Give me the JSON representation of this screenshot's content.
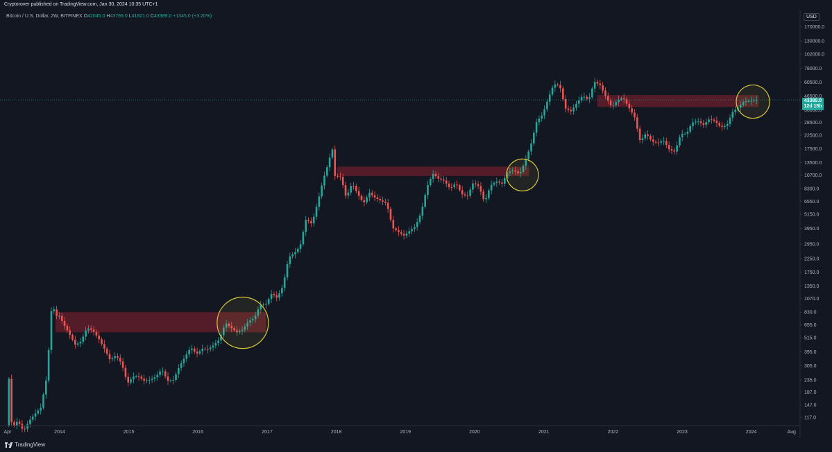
{
  "header": {
    "published": "Cryptorover published on TradingView.com, Jan 30, 2024 10:35 UTC+1"
  },
  "legend": {
    "symbol": "Bitcoin / U.S. Dollar, 2W, BITFINEX",
    "o_label": "O",
    "o_value": "42045.0",
    "h_label": "H",
    "h_value": "43769.0",
    "l_label": "L",
    "l_value": "41821.0",
    "c_label": "C",
    "c_value": "43389.0",
    "change": "+1345.0 (+3.20%)"
  },
  "price_scale": {
    "unit": "USD",
    "current_price": "43389.0",
    "countdown": "12d 15h"
  },
  "branding": {
    "logo_text": "TradingView"
  },
  "colors": {
    "background": "#131722",
    "up": "#26a69a",
    "down": "#ef5350",
    "zone": "#6b1f2c",
    "circle": "#d8c93a",
    "text": "#b2b5be"
  },
  "chart_data": {
    "type": "candlestick",
    "title": "Bitcoin / U.S. Dollar, 2W, BITFINEX",
    "y_scale": "log",
    "ylim": [
      100,
      230000
    ],
    "xlim": [
      "2013-02-20",
      "2024-09-15"
    ],
    "ytick_labels": [
      "170000.0",
      "130000.0",
      "102000.0",
      "78000.0",
      "60500.0",
      "46500.0",
      "36000.0",
      "28500.0",
      "22500.0",
      "17500.0",
      "13500.0",
      "10700.0",
      "8300.0",
      "6550.0",
      "5150.0",
      "3950.0",
      "2950.0",
      "2250.0",
      "1750.0",
      "1350.0",
      "1070.0",
      "830.0",
      "655.0",
      "515.0",
      "395.0",
      "305.0",
      "235.0",
      "187.0",
      "147.0",
      "117.0"
    ],
    "xtick_labels": [
      {
        "label": "Apr",
        "date": "2013-04-01"
      },
      {
        "label": "2014",
        "date": "2014-01-01"
      },
      {
        "label": "2015",
        "date": "2015-01-01"
      },
      {
        "label": "2016",
        "date": "2016-01-01"
      },
      {
        "label": "2017",
        "date": "2017-01-01"
      },
      {
        "label": "2018",
        "date": "2018-01-01"
      },
      {
        "label": "2019",
        "date": "2019-01-01"
      },
      {
        "label": "2020",
        "date": "2020-01-01"
      },
      {
        "label": "2021",
        "date": "2021-01-01"
      },
      {
        "label": "2022",
        "date": "2022-01-01"
      },
      {
        "label": "2023",
        "date": "2023-01-01"
      },
      {
        "label": "2024",
        "date": "2024-01-01"
      },
      {
        "label": "Aug",
        "date": "2024-08-01"
      }
    ],
    "price_path": [
      [
        "2013-04-01",
        100
      ],
      [
        "2013-04-15",
        240
      ],
      [
        "2013-05-01",
        95
      ],
      [
        "2013-06-01",
        110
      ],
      [
        "2013-07-01",
        90
      ],
      [
        "2013-08-01",
        110
      ],
      [
        "2013-09-01",
        125
      ],
      [
        "2013-10-01",
        140
      ],
      [
        "2013-11-01",
        250
      ],
      [
        "2013-11-15",
        500
      ],
      [
        "2013-11-30",
        1100
      ],
      [
        "2013-12-15",
        750
      ],
      [
        "2014-01-01",
        800
      ],
      [
        "2014-02-01",
        650
      ],
      [
        "2014-03-01",
        550
      ],
      [
        "2014-04-01",
        450
      ],
      [
        "2014-05-01",
        480
      ],
      [
        "2014-06-01",
        620
      ],
      [
        "2014-07-01",
        590
      ],
      [
        "2014-08-01",
        510
      ],
      [
        "2014-09-01",
        420
      ],
      [
        "2014-10-01",
        340
      ],
      [
        "2014-11-01",
        370
      ],
      [
        "2014-12-01",
        320
      ],
      [
        "2015-01-01",
        220
      ],
      [
        "2015-02-01",
        250
      ],
      [
        "2015-03-01",
        250
      ],
      [
        "2015-04-01",
        230
      ],
      [
        "2015-05-01",
        235
      ],
      [
        "2015-06-01",
        250
      ],
      [
        "2015-07-01",
        285
      ],
      [
        "2015-08-01",
        230
      ],
      [
        "2015-09-01",
        235
      ],
      [
        "2015-10-01",
        300
      ],
      [
        "2015-11-01",
        360
      ],
      [
        "2015-12-01",
        430
      ],
      [
        "2016-01-01",
        380
      ],
      [
        "2016-02-01",
        420
      ],
      [
        "2016-03-01",
        415
      ],
      [
        "2016-04-01",
        450
      ],
      [
        "2016-05-01",
        500
      ],
      [
        "2016-06-01",
        680
      ],
      [
        "2016-07-01",
        620
      ],
      [
        "2016-08-01",
        570
      ],
      [
        "2016-09-01",
        600
      ],
      [
        "2016-10-01",
        700
      ],
      [
        "2016-11-01",
        740
      ],
      [
        "2016-12-01",
        950
      ],
      [
        "2017-01-01",
        960
      ],
      [
        "2017-02-01",
        1180
      ],
      [
        "2017-03-01",
        1080
      ],
      [
        "2017-04-01",
        1350
      ],
      [
        "2017-05-01",
        2300
      ],
      [
        "2017-06-01",
        2500
      ],
      [
        "2017-07-01",
        2850
      ],
      [
        "2017-08-01",
        4700
      ],
      [
        "2017-09-01",
        4300
      ],
      [
        "2017-10-01",
        6400
      ],
      [
        "2017-11-01",
        10000
      ],
      [
        "2017-12-01",
        14000
      ],
      [
        "2017-12-16",
        18500
      ],
      [
        "2018-01-01",
        10500
      ],
      [
        "2018-02-01",
        10300
      ],
      [
        "2018-03-01",
        7000
      ],
      [
        "2018-04-01",
        9200
      ],
      [
        "2018-05-01",
        7500
      ],
      [
        "2018-06-01",
        6300
      ],
      [
        "2018-07-01",
        7700
      ],
      [
        "2018-08-01",
        7000
      ],
      [
        "2018-09-01",
        6600
      ],
      [
        "2018-10-01",
        6300
      ],
      [
        "2018-11-01",
        4000
      ],
      [
        "2018-12-01",
        3700
      ],
      [
        "2019-01-01",
        3450
      ],
      [
        "2019-02-01",
        3800
      ],
      [
        "2019-03-01",
        4100
      ],
      [
        "2019-04-01",
        5300
      ],
      [
        "2019-05-01",
        8500
      ],
      [
        "2019-06-01",
        11000
      ],
      [
        "2019-07-01",
        10000
      ],
      [
        "2019-08-01",
        9600
      ],
      [
        "2019-09-01",
        8300
      ],
      [
        "2019-10-01",
        9200
      ],
      [
        "2019-11-01",
        7500
      ],
      [
        "2019-12-01",
        7200
      ],
      [
        "2020-01-01",
        9300
      ],
      [
        "2020-02-01",
        8600
      ],
      [
        "2020-03-01",
        6400
      ],
      [
        "2020-04-01",
        8800
      ],
      [
        "2020-05-01",
        9500
      ],
      [
        "2020-06-01",
        9100
      ],
      [
        "2020-07-01",
        11300
      ],
      [
        "2020-08-01",
        11700
      ],
      [
        "2020-09-01",
        10800
      ],
      [
        "2020-10-01",
        13800
      ],
      [
        "2020-11-01",
        19000
      ],
      [
        "2020-12-01",
        29000
      ],
      [
        "2021-01-01",
        33000
      ],
      [
        "2021-02-01",
        45000
      ],
      [
        "2021-03-01",
        58000
      ],
      [
        "2021-04-01",
        57000
      ],
      [
        "2021-05-01",
        37000
      ],
      [
        "2021-06-01",
        35000
      ],
      [
        "2021-07-01",
        41000
      ],
      [
        "2021-08-01",
        47000
      ],
      [
        "2021-09-01",
        43000
      ],
      [
        "2021-10-01",
        61000
      ],
      [
        "2021-11-01",
        57000
      ],
      [
        "2021-12-01",
        46000
      ],
      [
        "2022-01-01",
        38000
      ],
      [
        "2022-02-01",
        43000
      ],
      [
        "2022-03-01",
        45500
      ],
      [
        "2022-04-01",
        37700
      ],
      [
        "2022-05-01",
        31800
      ],
      [
        "2022-06-01",
        19900
      ],
      [
        "2022-07-01",
        23300
      ],
      [
        "2022-08-01",
        20000
      ],
      [
        "2022-09-01",
        19400
      ],
      [
        "2022-10-01",
        20500
      ],
      [
        "2022-11-01",
        17200
      ],
      [
        "2022-12-01",
        16500
      ],
      [
        "2023-01-01",
        23100
      ],
      [
        "2023-02-01",
        23100
      ],
      [
        "2023-03-01",
        28400
      ],
      [
        "2023-04-01",
        29200
      ],
      [
        "2023-05-01",
        27200
      ],
      [
        "2023-06-01",
        30500
      ],
      [
        "2023-07-01",
        29200
      ],
      [
        "2023-08-01",
        26000
      ],
      [
        "2023-09-01",
        27000
      ],
      [
        "2023-10-01",
        34600
      ],
      [
        "2023-11-01",
        37700
      ],
      [
        "2023-12-01",
        42300
      ],
      [
        "2024-01-01",
        42500
      ],
      [
        "2024-01-29",
        43389
      ]
    ],
    "zones": [
      {
        "x0": "2013-12-10",
        "x1": "2016-12-25",
        "y0": 570,
        "y1": 830
      },
      {
        "x0": "2018-01-05",
        "x1": "2020-10-15",
        "y0": 10500,
        "y1": 12500
      },
      {
        "x0": "2021-10-10",
        "x1": "2024-02-10",
        "y0": 38000,
        "y1": 47500
      }
    ],
    "circles": [
      {
        "cx": "2016-08-25",
        "cy": 680
      },
      {
        "cx": "2020-09-10",
        "cy": 10700
      },
      {
        "cx": "2024-01-10",
        "cy": 42000
      }
    ],
    "last_price": 43389
  }
}
